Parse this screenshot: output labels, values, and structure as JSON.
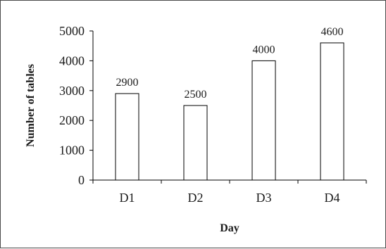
{
  "chart_data": {
    "type": "bar",
    "categories": [
      "D1",
      "D2",
      "D3",
      "D4"
    ],
    "values": [
      2900,
      2500,
      4000,
      4600
    ],
    "data_labels": [
      "2900",
      "2500",
      "4000",
      "4600"
    ],
    "xlabel": "Day",
    "ylabel": "Number of tables",
    "ylim": [
      0,
      5000
    ],
    "yticks": [
      "0",
      "1000",
      "2000",
      "3000",
      "4000",
      "5000"
    ],
    "grid": false,
    "legend": "none",
    "bar_fill": "#ffffff",
    "bar_stroke": "#000000"
  }
}
